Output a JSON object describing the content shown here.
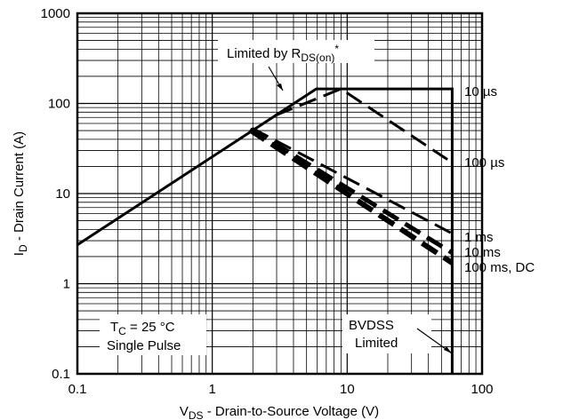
{
  "chart_data": {
    "type": "line",
    "title": "",
    "xlabel": {
      "main": "V",
      "sub": "DS",
      "rest": " - Drain-to-Source Voltage (V)"
    },
    "ylabel": {
      "main": "I",
      "sub": "D",
      "rest": " - Drain Current (A)"
    },
    "x_scale": "log",
    "y_scale": "log",
    "xlim": [
      0.1,
      100
    ],
    "ylim": [
      0.1,
      1000
    ],
    "grid": true,
    "x_ticks": [
      {
        "v": 0.1,
        "label": "0.1"
      },
      {
        "v": 1,
        "label": "1"
      },
      {
        "v": 10,
        "label": "10"
      },
      {
        "v": 100,
        "label": "100"
      }
    ],
    "y_ticks": [
      {
        "v": 0.1,
        "label": "0.1"
      },
      {
        "v": 1,
        "label": "1"
      },
      {
        "v": 10,
        "label": "10"
      },
      {
        "v": 100,
        "label": "100"
      },
      {
        "v": 1000,
        "label": "1000"
      }
    ],
    "series": [
      {
        "id": "us10",
        "name": "10 µs",
        "style": "solid",
        "width": 3,
        "points": [
          [
            0.1,
            2.7
          ],
          [
            5.9,
            145
          ],
          [
            60,
            145
          ],
          [
            60,
            0.1
          ]
        ]
      },
      {
        "id": "us100",
        "name": "100 µs",
        "style": "dash",
        "width": 3,
        "points": [
          [
            2.95,
            74
          ],
          [
            9.0,
            145
          ],
          [
            60,
            22
          ]
        ]
      },
      {
        "id": "ms1",
        "name": "1 ms",
        "style": "dash",
        "width": 3,
        "points": [
          [
            1.98,
            53
          ],
          [
            60,
            3.6
          ]
        ]
      },
      {
        "id": "ms10",
        "name": "10 ms",
        "style": "dash",
        "width": 5,
        "points": [
          [
            1.95,
            52
          ],
          [
            60,
            2.2
          ]
        ]
      },
      {
        "id": "ms100",
        "name": "100 ms, DC",
        "style": "dash",
        "width": 6,
        "points": [
          [
            1.9,
            51
          ],
          [
            60,
            1.7
          ]
        ]
      }
    ],
    "annotations": {
      "rds": {
        "main": "Limited by R",
        "sub": "DS(on)",
        "sup": "*"
      },
      "tc": {
        "main": "T",
        "sub": "C",
        "rest": " = 25 °C"
      },
      "single_pulse": "Single Pulse",
      "bvdss_line1": "BVDSS",
      "bvdss_line2": "Limited"
    }
  }
}
